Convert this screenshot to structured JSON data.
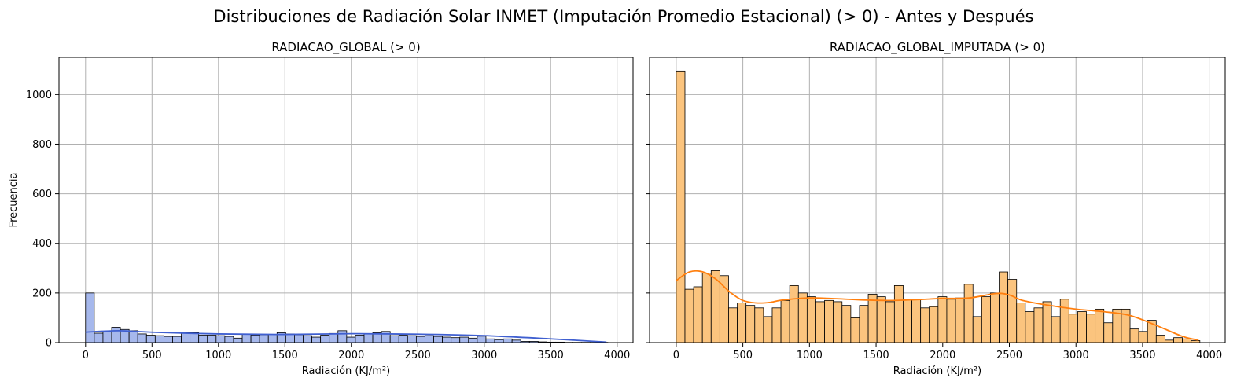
{
  "figure": {
    "suptitle": "Distribuciones de Radiación Solar INMET (Imputación Promedio Estacional) (> 0) - Antes y Después"
  },
  "colors": {
    "left_fill": "#a6b8ec",
    "left_kde": "#3f5fd0",
    "right_fill": "#fbc47e",
    "right_kde": "#ff7f0e",
    "edge": "#000000",
    "grid": "#b0b0b0"
  },
  "chart_data": [
    {
      "type": "bar",
      "subtype": "histogram",
      "title": "RADIACAO_GLOBAL (> 0)",
      "xlabel": "Radiación (KJ/m²)",
      "ylabel": "Frecuencia",
      "xlim": [
        -200,
        4120
      ],
      "ylim": [
        0,
        1150
      ],
      "xticks": [
        0,
        500,
        1000,
        1500,
        2000,
        2500,
        3000,
        3500,
        4000
      ],
      "yticks": [
        0,
        200,
        400,
        600,
        800,
        1000
      ],
      "grid": true,
      "bin_start": 0,
      "bin_width": 65.5,
      "counts": [
        200,
        38,
        45,
        62,
        53,
        48,
        35,
        30,
        28,
        25,
        25,
        40,
        40,
        30,
        30,
        28,
        25,
        18,
        35,
        30,
        32,
        33,
        40,
        35,
        32,
        28,
        22,
        30,
        37,
        48,
        22,
        30,
        35,
        40,
        45,
        28,
        30,
        28,
        25,
        28,
        25,
        22,
        20,
        22,
        18,
        26,
        15,
        12,
        15,
        10,
        5,
        5,
        3,
        2,
        2,
        1,
        1,
        1,
        1,
        1
      ],
      "kde_x": [
        0,
        250,
        500,
        1000,
        1500,
        2000,
        2500,
        3000,
        3500,
        3920
      ],
      "kde_y": [
        42,
        48,
        42,
        35,
        33,
        36,
        34,
        28,
        15,
        2
      ]
    },
    {
      "type": "bar",
      "subtype": "histogram",
      "title": "RADIACAO_GLOBAL_IMPUTADA (> 0)",
      "xlabel": "Radiación (KJ/m²)",
      "ylabel": "",
      "xlim": [
        -200,
        4120
      ],
      "ylim": [
        0,
        1150
      ],
      "xticks": [
        0,
        500,
        1000,
        1500,
        2000,
        2500,
        3000,
        3500,
        4000
      ],
      "yticks": [
        0,
        200,
        400,
        600,
        800,
        1000
      ],
      "grid": true,
      "bin_start": 0,
      "bin_width": 65.5,
      "counts": [
        1095,
        215,
        225,
        280,
        290,
        270,
        140,
        160,
        150,
        140,
        105,
        140,
        170,
        230,
        200,
        185,
        165,
        170,
        165,
        150,
        100,
        150,
        195,
        185,
        165,
        230,
        175,
        175,
        140,
        145,
        185,
        175,
        180,
        235,
        105,
        185,
        200,
        285,
        255,
        160,
        125,
        140,
        165,
        105,
        175,
        115,
        125,
        115,
        135,
        80,
        135,
        135,
        55,
        45,
        90,
        30,
        10,
        20,
        15,
        8
      ],
      "kde_x": [
        0,
        100,
        200,
        300,
        400,
        500,
        600,
        700,
        800,
        1000,
        1200,
        1400,
        1600,
        1800,
        2000,
        2200,
        2400,
        2500,
        2600,
        2800,
        3000,
        3200,
        3400,
        3600,
        3800,
        3920
      ],
      "kde_y": [
        250,
        285,
        285,
        255,
        205,
        170,
        160,
        162,
        172,
        180,
        177,
        172,
        170,
        173,
        178,
        180,
        198,
        192,
        170,
        150,
        135,
        125,
        110,
        70,
        25,
        10
      ]
    }
  ]
}
